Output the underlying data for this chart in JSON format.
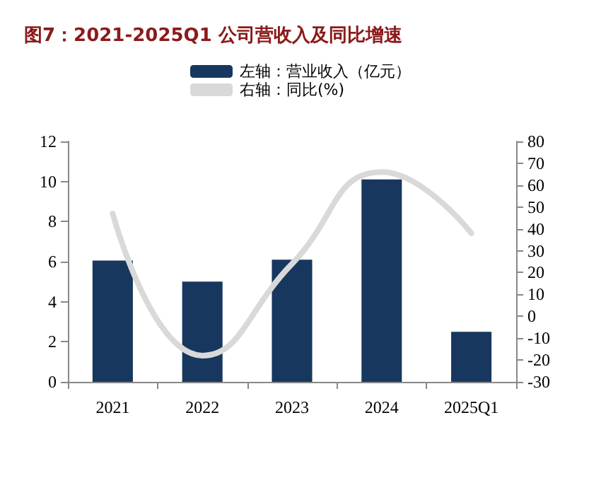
{
  "chart_data": {
    "type": "bar",
    "title": "图7：2021-2025Q1 公司营收入及同比增速",
    "categories": [
      "2021",
      "2022",
      "2023",
      "2024",
      "2025Q1"
    ],
    "series": [
      {
        "name": "左轴：营业收入（亿元）",
        "color": "#17375e",
        "values": [
          6.05,
          5.0,
          6.1,
          10.1,
          2.5
        ]
      },
      {
        "name": "右轴：同比(%)",
        "type": "line",
        "axis": "y2",
        "color": "#d9d9d9",
        "values": [
          47,
          -18,
          24,
          66,
          38
        ]
      }
    ],
    "ylim": [
      0,
      12
    ],
    "yticks": [
      0,
      2,
      4,
      6,
      8,
      10,
      12
    ],
    "y2lim": [
      -30,
      80
    ],
    "y2ticks": [
      -30,
      -20,
      -10,
      0,
      10,
      20,
      30,
      40,
      50,
      60,
      70,
      80
    ],
    "grid": false,
    "legend": "top",
    "marker": "none"
  }
}
